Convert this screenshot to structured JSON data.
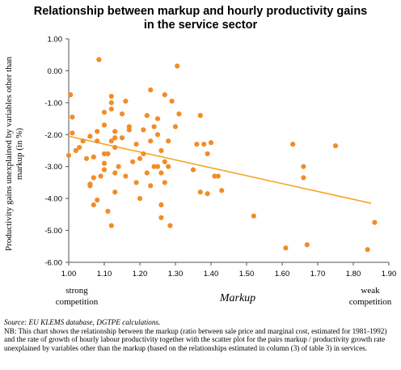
{
  "title_line1": "Relationship between markup and hourly productivity gains",
  "title_line2": "in the service sector",
  "source": "Source: EU KLEMS database, DGTPE calculations.",
  "note": "NB: This chart shows the relationship between the markup (ratio between sale price and marginal cost, estimated for 1981-1992) and the rate of growth of hourly labour productivity together with the scatter plot for the pairs markup / productivity growth rate unexplained by variables other than the markup (based on the relationships estimated in column (3) of table 3) in services.",
  "colors": {
    "points": "#f28c28",
    "trend": "#f5a623",
    "axis": "#555555"
  },
  "chart_data": {
    "type": "scatter",
    "title": "Relationship between markup and hourly productivity gains in the service sector",
    "xlabel": "Markup",
    "ylabel_line1": "Productivity gains unexplained by variables other than",
    "ylabel_line2": "markup (in %)",
    "xlim": [
      1.0,
      1.9
    ],
    "ylim": [
      -6.0,
      1.0
    ],
    "xticks": [
      "1.00",
      "1.10",
      "1.20",
      "1.30",
      "1.40",
      "1.50",
      "1.60",
      "1.70",
      "1.80",
      "1.90"
    ],
    "yticks": [
      "1.00",
      "0.00",
      "-1.00",
      "-2.00",
      "-3.00",
      "-4.00",
      "-5.00",
      "-6.00"
    ],
    "annotations": {
      "left_line1": "strong",
      "left_line2": "competition",
      "right_line1": "weak",
      "right_line2": "competition"
    },
    "grid": false,
    "legend": "none",
    "trendline": {
      "x": [
        1.0,
        1.85
      ],
      "y": [
        -2.05,
        -4.15
      ]
    },
    "points": [
      {
        "x": 1.0,
        "y": -2.65
      },
      {
        "x": 1.005,
        "y": -0.75
      },
      {
        "x": 1.01,
        "y": -1.45
      },
      {
        "x": 1.01,
        "y": -1.95
      },
      {
        "x": 1.02,
        "y": -2.5
      },
      {
        "x": 1.03,
        "y": -2.4
      },
      {
        "x": 1.04,
        "y": -2.2
      },
      {
        "x": 1.05,
        "y": -2.75
      },
      {
        "x": 1.06,
        "y": -3.55
      },
      {
        "x": 1.06,
        "y": -3.6
      },
      {
        "x": 1.06,
        "y": -2.05
      },
      {
        "x": 1.07,
        "y": -4.2
      },
      {
        "x": 1.07,
        "y": -3.35
      },
      {
        "x": 1.07,
        "y": -2.7
      },
      {
        "x": 1.08,
        "y": -4.05
      },
      {
        "x": 1.08,
        "y": -2.2
      },
      {
        "x": 1.08,
        "y": -1.9
      },
      {
        "x": 1.085,
        "y": 0.35
      },
      {
        "x": 1.09,
        "y": -3.3
      },
      {
        "x": 1.1,
        "y": -2.9
      },
      {
        "x": 1.1,
        "y": -2.6
      },
      {
        "x": 1.1,
        "y": -1.3
      },
      {
        "x": 1.1,
        "y": -1.7
      },
      {
        "x": 1.1,
        "y": -3.1
      },
      {
        "x": 1.11,
        "y": -4.4
      },
      {
        "x": 1.11,
        "y": -2.6
      },
      {
        "x": 1.12,
        "y": -2.2
      },
      {
        "x": 1.12,
        "y": -1.0
      },
      {
        "x": 1.12,
        "y": -0.8
      },
      {
        "x": 1.12,
        "y": -1.2
      },
      {
        "x": 1.12,
        "y": -4.85
      },
      {
        "x": 1.13,
        "y": -1.9
      },
      {
        "x": 1.13,
        "y": -2.4
      },
      {
        "x": 1.13,
        "y": -2.1
      },
      {
        "x": 1.13,
        "y": -3.2
      },
      {
        "x": 1.13,
        "y": -3.8
      },
      {
        "x": 1.14,
        "y": -3.0
      },
      {
        "x": 1.15,
        "y": -1.35
      },
      {
        "x": 1.15,
        "y": -2.1
      },
      {
        "x": 1.16,
        "y": -3.3
      },
      {
        "x": 1.16,
        "y": -0.95
      },
      {
        "x": 1.17,
        "y": -1.85
      },
      {
        "x": 1.17,
        "y": -1.75
      },
      {
        "x": 1.18,
        "y": -2.85
      },
      {
        "x": 1.19,
        "y": -3.5
      },
      {
        "x": 1.19,
        "y": -2.3
      },
      {
        "x": 1.2,
        "y": -4.0
      },
      {
        "x": 1.2,
        "y": -2.75
      },
      {
        "x": 1.21,
        "y": -1.85
      },
      {
        "x": 1.21,
        "y": -2.6
      },
      {
        "x": 1.22,
        "y": -3.2
      },
      {
        "x": 1.22,
        "y": -1.4
      },
      {
        "x": 1.23,
        "y": -0.6
      },
      {
        "x": 1.23,
        "y": -2.2
      },
      {
        "x": 1.23,
        "y": -3.6
      },
      {
        "x": 1.24,
        "y": -1.75
      },
      {
        "x": 1.24,
        "y": -3.0
      },
      {
        "x": 1.25,
        "y": -1.5
      },
      {
        "x": 1.25,
        "y": -2.0
      },
      {
        "x": 1.25,
        "y": -3.0
      },
      {
        "x": 1.26,
        "y": -2.5
      },
      {
        "x": 1.26,
        "y": -3.2
      },
      {
        "x": 1.26,
        "y": -4.2
      },
      {
        "x": 1.26,
        "y": -4.6
      },
      {
        "x": 1.27,
        "y": -0.75
      },
      {
        "x": 1.27,
        "y": -2.85
      },
      {
        "x": 1.27,
        "y": -3.5
      },
      {
        "x": 1.28,
        "y": -2.2
      },
      {
        "x": 1.28,
        "y": -3.0
      },
      {
        "x": 1.285,
        "y": -4.85
      },
      {
        "x": 1.29,
        "y": -0.95
      },
      {
        "x": 1.3,
        "y": -1.75
      },
      {
        "x": 1.305,
        "y": 0.15
      },
      {
        "x": 1.31,
        "y": -1.35
      },
      {
        "x": 1.35,
        "y": -3.1
      },
      {
        "x": 1.36,
        "y": -2.3
      },
      {
        "x": 1.37,
        "y": -3.8
      },
      {
        "x": 1.37,
        "y": -1.4
      },
      {
        "x": 1.38,
        "y": -2.3
      },
      {
        "x": 1.39,
        "y": -2.6
      },
      {
        "x": 1.39,
        "y": -3.85
      },
      {
        "x": 1.4,
        "y": -2.25
      },
      {
        "x": 1.41,
        "y": -3.3
      },
      {
        "x": 1.42,
        "y": -3.3
      },
      {
        "x": 1.43,
        "y": -3.75
      },
      {
        "x": 1.52,
        "y": -4.55
      },
      {
        "x": 1.61,
        "y": -5.55
      },
      {
        "x": 1.63,
        "y": -2.3
      },
      {
        "x": 1.66,
        "y": -3.0
      },
      {
        "x": 1.66,
        "y": -3.35
      },
      {
        "x": 1.67,
        "y": -5.45
      },
      {
        "x": 1.75,
        "y": -2.35
      },
      {
        "x": 1.84,
        "y": -5.6
      },
      {
        "x": 1.86,
        "y": -4.75
      }
    ]
  }
}
